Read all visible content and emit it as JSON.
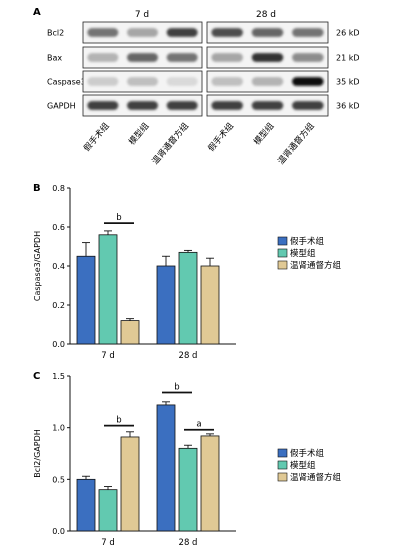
{
  "panels": {
    "A": {
      "label": "A",
      "groups": [
        "7 d",
        "28 d"
      ],
      "proteins": [
        {
          "name": "Bcl2",
          "kd": "26 kD"
        },
        {
          "name": "Bax",
          "kd": "21 kD"
        },
        {
          "name": "Caspase3",
          "kd": "35 kD"
        },
        {
          "name": "GAPDH",
          "kd": "36 kD"
        }
      ],
      "lane_labels": [
        "假手术组",
        "模型组",
        "温肾通督方组",
        "假手术组",
        "模型组",
        "温肾通督方组"
      ],
      "band_intensity": {
        "7 d": {
          "Bcl2": [
            0.55,
            0.35,
            0.75
          ],
          "Bax": [
            0.3,
            0.6,
            0.55
          ],
          "Caspase3": [
            0.2,
            0.25,
            0.15
          ],
          "GAPDH": [
            0.75,
            0.75,
            0.75
          ]
        },
        "28 d": {
          "Bcl2": [
            0.7,
            0.6,
            0.55
          ],
          "Bax": [
            0.35,
            0.8,
            0.45
          ],
          "Caspase3": [
            0.25,
            0.3,
            0.95
          ],
          "GAPDH": [
            0.75,
            0.75,
            0.75
          ]
        }
      }
    },
    "B": {
      "label": "B"
    },
    "C": {
      "label": "C"
    }
  },
  "legend": [
    "假手术组",
    "模型组",
    "温肾通督方组"
  ],
  "colors": {
    "sham": "#3b6fc0",
    "model": "#62c9b0",
    "treat": "#e0c995",
    "edge": "#111111"
  },
  "chart_data": [
    {
      "type": "bar",
      "panel": "B",
      "title": "",
      "xlabel": "",
      "ylabel": "Caspase3/GAPDH",
      "ylim": [
        0,
        0.8
      ],
      "yticks": [
        "0.0",
        "0.2",
        "0.4",
        "0.6",
        "0.8"
      ],
      "categories": [
        "7 d",
        "28 d"
      ],
      "series": [
        {
          "name": "假手术组",
          "values": [
            0.45,
            0.4
          ],
          "errors": [
            0.07,
            0.05
          ]
        },
        {
          "name": "模型组",
          "values": [
            0.56,
            0.47
          ],
          "errors": [
            0.02,
            0.01
          ]
        },
        {
          "name": "温肾通督方组",
          "values": [
            0.12,
            0.4
          ],
          "errors": [
            0.01,
            0.04
          ]
        }
      ],
      "annotations": [
        {
          "text": "b",
          "category": 0,
          "from_series": 1,
          "to_series": 2,
          "y": 0.62
        }
      ],
      "legend_position": "right"
    },
    {
      "type": "bar",
      "panel": "C",
      "title": "",
      "xlabel": "",
      "ylabel": "Bcl2/GAPDH",
      "ylim": [
        0,
        1.5
      ],
      "yticks": [
        "0.0",
        "0.5",
        "1.0",
        "1.5"
      ],
      "categories": [
        "7 d",
        "28 d"
      ],
      "series": [
        {
          "name": "假手术组",
          "values": [
            0.5,
            1.22
          ],
          "errors": [
            0.03,
            0.03
          ]
        },
        {
          "name": "模型组",
          "values": [
            0.4,
            0.8
          ],
          "errors": [
            0.03,
            0.03
          ]
        },
        {
          "name": "温肾通督方组",
          "values": [
            0.91,
            0.92
          ],
          "errors": [
            0.05,
            0.02
          ]
        }
      ],
      "annotations": [
        {
          "text": "b",
          "category": 0,
          "from_series": 1,
          "to_series": 2,
          "y": 1.02
        },
        {
          "text": "b",
          "category": 1,
          "from_series": 0,
          "to_series": 1,
          "y": 1.34
        },
        {
          "text": "a",
          "category": 1,
          "from_series": 1,
          "to_series": 2,
          "y": 0.98
        }
      ],
      "legend_position": "right"
    }
  ]
}
